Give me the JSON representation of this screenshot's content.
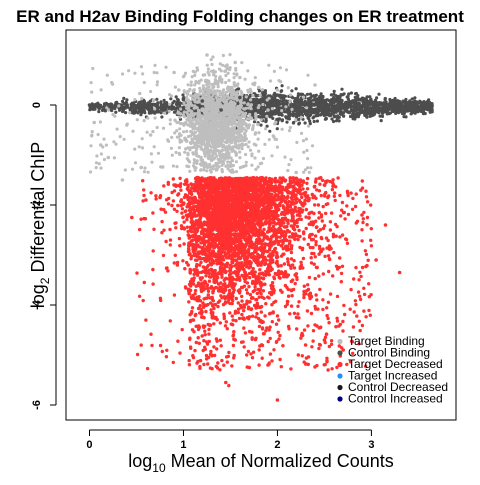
{
  "chart_data": {
    "type": "scatter",
    "title": "ER and H2av Binding Folding changes on ER treatment",
    "xlabel_prefix": "log",
    "xlabel_sub": "10",
    "xlabel_suffix": " Mean of Normalized Counts",
    "ylabel_prefix": "log",
    "ylabel_sub": "2",
    "ylabel_suffix": " Differential ChIP",
    "xlim": [
      -0.25,
      3.9
    ],
    "ylim": [
      -6.3,
      1.5
    ],
    "x_ticks": [
      0,
      1,
      2,
      3
    ],
    "x_tick_labels": [
      "0",
      "1",
      "2",
      "3"
    ],
    "y_ticks": [
      -6,
      -4,
      -2,
      0
    ],
    "y_tick_labels": [
      "-6",
      "-4",
      "-2",
      "0"
    ],
    "grid": false,
    "legend_position": "bottom-right",
    "series": [
      {
        "name": "Target Binding",
        "color": "#bebebe",
        "description_points": [
          [
            0.05,
            -0.35
          ],
          [
            0.12,
            -0.8
          ],
          [
            0.2,
            -1.05
          ],
          [
            0.35,
            -1.5
          ],
          [
            0.55,
            -1.25
          ],
          [
            0.65,
            -0.6
          ],
          [
            0.9,
            0.65
          ],
          [
            0.95,
            0.3
          ],
          [
            1.05,
            0.1
          ],
          [
            1.1,
            -0.3
          ],
          [
            1.15,
            -0.75
          ],
          [
            1.2,
            -1.1
          ],
          [
            1.25,
            0.4
          ],
          [
            1.3,
            -0.5
          ],
          [
            1.35,
            -1.3
          ],
          [
            1.4,
            0.2
          ],
          [
            1.45,
            -0.9
          ],
          [
            1.5,
            -0.2
          ],
          [
            1.6,
            0.55
          ],
          [
            1.7,
            -0.4
          ],
          [
            1.8,
            0.35
          ],
          [
            1.9,
            -0.1
          ],
          [
            2.0,
            0.3
          ],
          [
            2.2,
            -1.35
          ],
          [
            2.4,
            0.4
          ],
          [
            1.25,
            1.0
          ],
          [
            1.55,
            0.85
          ]
        ]
      },
      {
        "name": "Control Binding",
        "color": "#4d4d4d",
        "description_points": [
          [
            0.0,
            0.0
          ],
          [
            0.2,
            0.0
          ],
          [
            0.4,
            0.0
          ],
          [
            0.6,
            -0.02
          ],
          [
            0.8,
            0.03
          ],
          [
            1.0,
            -0.05
          ],
          [
            1.2,
            0.08
          ],
          [
            1.4,
            -0.1
          ],
          [
            1.6,
            0.15
          ],
          [
            1.8,
            -0.12
          ],
          [
            2.0,
            0.2
          ],
          [
            2.2,
            -0.18
          ],
          [
            2.4,
            0.12
          ],
          [
            2.6,
            -0.15
          ],
          [
            2.8,
            0.08
          ],
          [
            3.0,
            -0.1
          ],
          [
            3.2,
            0.05
          ],
          [
            3.4,
            -0.02
          ],
          [
            3.6,
            0.0
          ]
        ]
      },
      {
        "name": "Target Decreased",
        "color": "#ff3030",
        "description_points": [
          [
            0.45,
            -2.25
          ],
          [
            0.6,
            -1.9
          ],
          [
            0.75,
            -1.85
          ],
          [
            0.9,
            -1.6
          ],
          [
            1.05,
            -3.2
          ],
          [
            1.1,
            -4.3
          ],
          [
            1.15,
            -3.0
          ],
          [
            1.3,
            -5.0
          ],
          [
            1.45,
            -5.55
          ],
          [
            1.55,
            -4.7
          ],
          [
            1.7,
            -5.25
          ],
          [
            1.9,
            -5.2
          ],
          [
            2.0,
            -5.9
          ],
          [
            2.3,
            -4.8
          ],
          [
            2.5,
            -4.7
          ],
          [
            2.7,
            -4.9
          ],
          [
            3.05,
            -3.1
          ],
          [
            3.3,
            -3.35
          ],
          [
            2.9,
            -2.2
          ],
          [
            3.15,
            -2.4
          ],
          [
            2.5,
            -1.6
          ],
          [
            1.8,
            -3.5
          ],
          [
            2.1,
            -2.9
          ],
          [
            1.25,
            -2.5
          ]
        ]
      },
      {
        "name": "Target Increased",
        "color": "#1e90ff",
        "description_points": []
      },
      {
        "name": "Control Decreased",
        "color": "#1a1a1a",
        "description_points": []
      },
      {
        "name": "Control Increased",
        "color": "#00008b",
        "description_points": []
      }
    ]
  }
}
